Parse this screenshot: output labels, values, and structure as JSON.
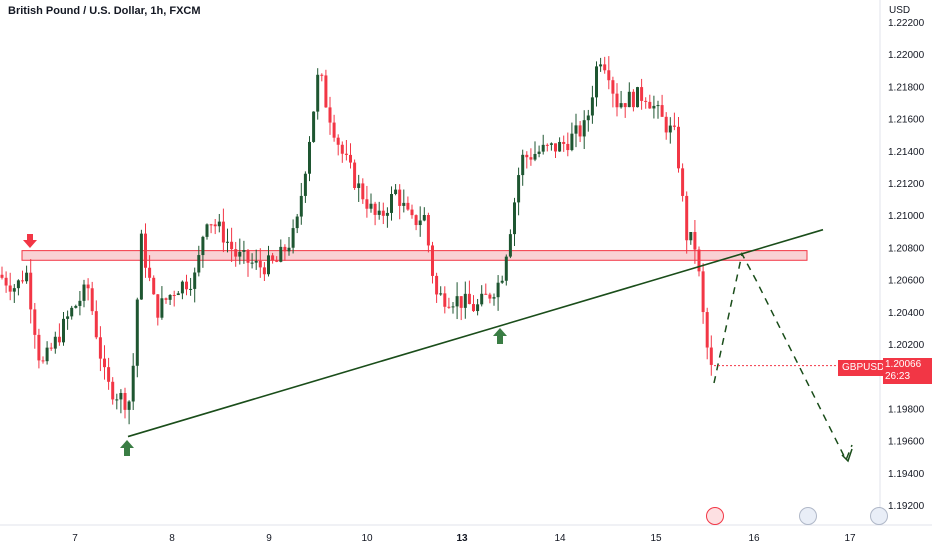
{
  "header": {
    "title": "British Pound / U.S. Dollar, 1h, FXCM",
    "currency": "USD"
  },
  "price_tag": {
    "symbol": "GBPUSD",
    "price": "1.20066",
    "countdown": "26:23"
  },
  "colors": {
    "up": "#1e5631",
    "down": "#f23645",
    "trendline": "#1a4d1a",
    "zone_fill": "#f8c9cc",
    "zone_border": "#f23645",
    "arrow_up": "#3a7d44",
    "arrow_down": "#f23645"
  },
  "chart_data": {
    "type": "candlestick",
    "symbol": "GBPUSD",
    "interval": "1h",
    "y_axis": {
      "ticks": [
        "1.22200",
        "1.22000",
        "1.21800",
        "1.21600",
        "1.21400",
        "1.21200",
        "1.21000",
        "1.20800",
        "1.20600",
        "1.20400",
        "1.20200",
        "1.20000",
        "1.19800",
        "1.19600",
        "1.19400",
        "1.19200"
      ],
      "ylim": [
        1.1915,
        1.2225
      ]
    },
    "x_axis": {
      "ticks": [
        "7",
        "8",
        "9",
        "10",
        "13",
        "14",
        "15",
        "16",
        "17"
      ],
      "bold_ticks": [
        "13"
      ]
    },
    "resistance_zone": [
      1.2072,
      1.2078
    ],
    "trendline": {
      "from": [
        1.19625,
        0.138
      ],
      "to": [
        1.2091,
        0.885
      ]
    },
    "projection": [
      [
        1.2078,
        0.796
      ],
      [
        1.2004,
        0.777
      ],
      [
        1.2075,
        0.796
      ],
      [
        1.195,
        0.911
      ],
      [
        1.1948,
        0.92
      ]
    ],
    "current_price": 1.20066,
    "candles_summary": [
      {
        "x": "7",
        "open": 1.2062,
        "close": 1.202
      },
      {
        "x": "8",
        "open": 1.199,
        "close": 1.2055
      },
      {
        "x": "9",
        "open": 1.207,
        "close": 1.2085
      },
      {
        "x": "10",
        "open": 1.211,
        "close": 1.209
      },
      {
        "x": "13",
        "open": 1.206,
        "close": 1.21
      },
      {
        "x": "14",
        "open": 1.214,
        "close": 1.221
      },
      {
        "x": "15",
        "open": 1.217,
        "close": 1.2085
      },
      {
        "x": "15.5",
        "open": 1.207,
        "close": 1.2004
      }
    ]
  }
}
